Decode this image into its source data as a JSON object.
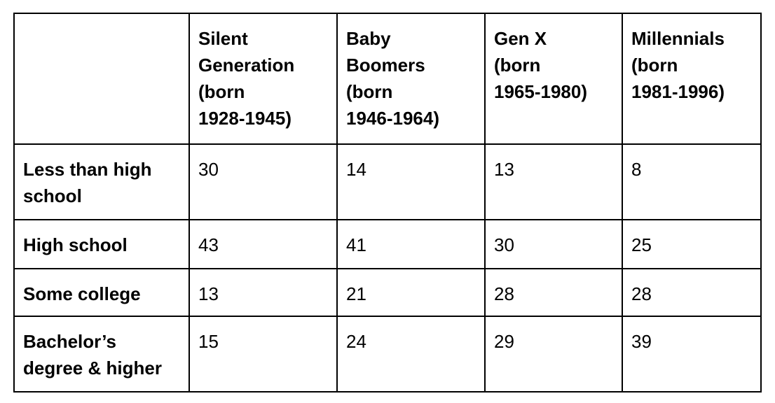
{
  "chart_data": {
    "type": "table",
    "title": "",
    "columns": [
      "",
      "Silent Generation (born 1928-1945)",
      "Baby Boomers (born 1946-1964)",
      "Gen X (born 1965-1980)",
      "Millennials (born 1981-1996)"
    ],
    "column_lines": [
      [],
      [
        "Silent",
        "Generation",
        "(born",
        "1928-1945)"
      ],
      [
        "Baby",
        "Boomers",
        "(born",
        "1946-1964)"
      ],
      [
        "Gen X",
        "(born",
        "1965-1980)"
      ],
      [
        "Millennials",
        "(born",
        "1981-1996)"
      ]
    ],
    "rows": [
      {
        "label": "Less than high school",
        "label_lines": [
          "Less than high",
          "school"
        ],
        "values": [
          "30",
          "14",
          "13",
          "8"
        ]
      },
      {
        "label": "High school",
        "label_lines": [
          "High school"
        ],
        "values": [
          "43",
          "41",
          "30",
          "25"
        ]
      },
      {
        "label": "Some college",
        "label_lines": [
          "Some college"
        ],
        "values": [
          "13",
          "21",
          "28",
          "28"
        ]
      },
      {
        "label": "Bachelor’s degree & higher",
        "label_lines": [
          "Bachelor’s",
          "degree & higher"
        ],
        "values": [
          "15",
          "24",
          "29",
          "39"
        ]
      }
    ]
  }
}
